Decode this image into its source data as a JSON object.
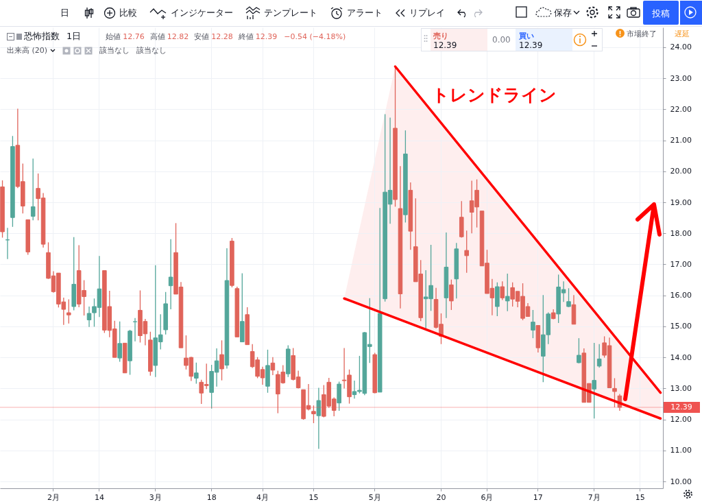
{
  "chart_data": {
    "type": "candlestick",
    "title": "恐怖指数",
    "subtitle": "1日",
    "categories": [
      null,
      null,
      null,
      null,
      null,
      null,
      null,
      null,
      null,
      null,
      "2月",
      null,
      null,
      null,
      null,
      null,
      null,
      null,
      null,
      "14",
      null,
      null,
      null,
      null,
      null,
      null,
      null,
      null,
      null,
      null,
      "3月",
      null,
      null,
      null,
      null,
      null,
      null,
      null,
      null,
      null,
      null,
      "18",
      null,
      null,
      null,
      null,
      null,
      null,
      null,
      null,
      null,
      "4月",
      null,
      null,
      null,
      null,
      null,
      null,
      null,
      null,
      null,
      "15",
      null,
      null,
      null,
      null,
      null,
      null,
      null,
      null,
      null,
      null,
      null,
      "5月",
      null,
      null,
      null,
      null,
      null,
      null,
      null,
      null,
      null,
      null,
      null,
      null,
      "20",
      null,
      null,
      null,
      null,
      null,
      null,
      null,
      null,
      "6月",
      null,
      null,
      null,
      null,
      null,
      null,
      null,
      null,
      null,
      "17",
      null,
      null,
      null,
      null,
      null,
      null,
      null,
      null,
      null,
      null,
      "7月",
      null,
      null,
      null,
      null,
      null,
      null,
      null,
      null,
      "15",
      null,
      null,
      null,
      null
    ],
    "ohlc": [
      [
        19.5,
        19.71,
        17.86,
        18.05
      ],
      [
        17.79,
        18.18,
        17.17,
        17.79
      ],
      [
        18.51,
        21.14,
        18.21,
        20.8
      ],
      [
        20.84,
        22.02,
        19.46,
        19.51
      ],
      [
        19.67,
        20.25,
        18.64,
        18.88
      ],
      [
        18.44,
        18.44,
        17.31,
        17.4
      ],
      [
        18.55,
        20.41,
        18.42,
        18.86
      ],
      [
        19.45,
        19.93,
        18.42,
        19.12
      ],
      [
        19.14,
        19.3,
        17.54,
        17.65
      ],
      [
        17.38,
        17.71,
        16.53,
        16.55
      ],
      [
        16.63,
        16.78,
        16.09,
        16.12
      ],
      [
        16.72,
        16.72,
        15.61,
        15.72
      ],
      [
        15.79,
        15.93,
        15.05,
        15.55
      ],
      [
        15.44,
        15.87,
        15.09,
        15.37
      ],
      [
        15.64,
        17.88,
        15.52,
        16.36
      ],
      [
        16.8,
        17.62,
        15.62,
        15.72
      ],
      [
        16.16,
        16.49,
        15.35,
        15.96
      ],
      [
        15.21,
        15.64,
        14.98,
        15.42
      ],
      [
        15.44,
        15.9,
        14.99,
        15.64
      ],
      [
        15.61,
        17.27,
        15.3,
        16.21
      ],
      [
        16.8,
        16.8,
        14.79,
        14.88
      ],
      [
        15.64,
        16.15,
        14.65,
        14.87
      ],
      [
        14.92,
        15.18,
        14.0,
        14.0
      ],
      [
        13.98,
        15.16,
        13.86,
        14.45
      ],
      [
        14.46,
        14.46,
        13.5,
        13.5
      ],
      [
        13.89,
        14.89,
        13.44,
        14.85
      ],
      [
        15.15,
        15.27,
        14.52,
        15.15
      ],
      [
        15.52,
        16.16,
        14.48,
        14.7
      ],
      [
        15.16,
        15.24,
        14.39,
        14.76
      ],
      [
        14.56,
        14.83,
        13.41,
        13.55
      ],
      [
        13.74,
        16.97,
        13.37,
        14.63
      ],
      [
        14.5,
        15.39,
        14.26,
        14.73
      ],
      [
        14.89,
        16.11,
        14.74,
        15.73
      ],
      [
        16.31,
        17.81,
        15.55,
        16.59
      ],
      [
        17.38,
        18.33,
        16.04,
        16.04
      ],
      [
        16.27,
        16.43,
        14.31,
        14.31
      ],
      [
        13.98,
        14.71,
        13.61,
        13.74
      ],
      [
        14.0,
        14.02,
        13.24,
        13.39
      ],
      [
        13.33,
        13.83,
        13.15,
        13.5
      ],
      [
        13.2,
        13.28,
        12.5,
        12.85
      ],
      [
        13.13,
        13.8,
        12.98,
        13.09
      ],
      [
        12.87,
        13.76,
        12.35,
        13.55
      ],
      [
        13.52,
        14.29,
        13.06,
        13.89
      ],
      [
        14.09,
        14.55,
        13.26,
        13.63
      ],
      [
        13.75,
        17.52,
        13.64,
        16.48
      ],
      [
        17.75,
        17.85,
        16.26,
        16.32
      ],
      [
        16.22,
        16.28,
        14.66,
        14.66
      ],
      [
        14.5,
        16.71,
        14.5,
        15.16
      ],
      [
        15.38,
        15.62,
        14.41,
        14.41
      ],
      [
        14.19,
        14.43,
        13.66,
        13.7
      ],
      [
        13.92,
        14.01,
        13.33,
        13.39
      ],
      [
        13.61,
        13.7,
        13.12,
        13.34
      ],
      [
        13.07,
        14.25,
        12.86,
        13.74
      ],
      [
        13.82,
        14.01,
        13.43,
        13.59
      ],
      [
        13.45,
        13.57,
        12.2,
        12.82
      ],
      [
        13.53,
        13.75,
        13.15,
        13.18
      ],
      [
        13.47,
        14.39,
        13.37,
        14.27
      ],
      [
        14.06,
        14.3,
        13.26,
        13.29
      ],
      [
        13.37,
        13.57,
        13.0,
        13.02
      ],
      [
        12.96,
        12.96,
        11.99,
        12.02
      ],
      [
        12.45,
        13.14,
        12.29,
        12.33
      ],
      [
        12.26,
        12.45,
        11.88,
        12.18
      ],
      [
        12.12,
        13.02,
        11.05,
        12.61
      ],
      [
        12.8,
        13.11,
        12.07,
        12.1
      ],
      [
        13.2,
        13.34,
        12.37,
        12.43
      ],
      [
        12.66,
        12.71,
        12.1,
        12.29
      ],
      [
        12.53,
        13.22,
        12.28,
        13.14
      ],
      [
        13.27,
        14.3,
        13.0,
        13.25
      ],
      [
        13.43,
        13.61,
        12.51,
        12.73
      ],
      [
        12.8,
        13.25,
        12.67,
        12.9
      ],
      [
        12.9,
        14.05,
        12.84,
        12.94
      ],
      [
        12.84,
        14.82,
        12.78,
        14.8
      ],
      [
        14.35,
        15.91,
        13.82,
        14.42
      ],
      [
        14.09,
        14.15,
        12.84,
        12.86
      ],
      [
        12.88,
        18.82,
        12.88,
        15.42
      ],
      [
        15.89,
        21.84,
        15.8,
        19.33
      ],
      [
        18.94,
        21.73,
        18.31,
        19.39
      ],
      [
        21.39,
        23.37,
        18.86,
        19.09
      ],
      [
        18.8,
        20.17,
        15.58,
        16.05
      ],
      [
        18.6,
        21.32,
        18.35,
        20.56
      ],
      [
        19.39,
        19.64,
        17.47,
        18.07
      ],
      [
        17.57,
        19.13,
        16.44,
        16.44
      ],
      [
        16.69,
        17.14,
        15.17,
        15.28
      ],
      [
        15.89,
        16.81,
        14.93,
        15.95
      ],
      [
        15.89,
        17.63,
        15.5,
        16.32
      ],
      [
        15.87,
        16.24,
        14.93,
        14.97
      ],
      [
        15.07,
        15.42,
        14.43,
        14.68
      ],
      [
        15.92,
        18.03,
        15.27,
        16.91
      ],
      [
        16.34,
        16.51,
        15.53,
        15.82
      ],
      [
        16.53,
        17.69,
        15.9,
        17.5
      ],
      [
        18.52,
        19.04,
        17.86,
        17.89
      ],
      [
        17.45,
        18.09,
        16.73,
        17.28
      ],
      [
        19.05,
        19.7,
        18.0,
        18.68
      ],
      [
        19.39,
        19.74,
        18.19,
        18.85
      ],
      [
        18.72,
        18.72,
        16.95,
        16.95
      ],
      [
        17.04,
        17.47,
        16.06,
        16.06
      ],
      [
        16.23,
        16.53,
        15.36,
        15.92
      ],
      [
        15.64,
        16.42,
        15.33,
        16.28
      ],
      [
        16.28,
        16.45,
        15.85,
        15.92
      ],
      [
        15.82,
        16.7,
        15.49,
        15.97
      ],
      [
        16.25,
        16.42,
        15.64,
        15.88
      ],
      [
        16.13,
        16.13,
        15.62,
        15.81
      ],
      [
        15.97,
        16.39,
        15.2,
        15.26
      ],
      [
        15.64,
        15.75,
        15.31,
        15.32
      ],
      [
        14.88,
        15.53,
        14.62,
        15.14
      ],
      [
        15.03,
        15.03,
        14.16,
        14.31
      ],
      [
        14.04,
        16.01,
        13.2,
        14.73
      ],
      [
        14.73,
        15.45,
        14.43,
        15.4
      ],
      [
        15.44,
        15.55,
        15.23,
        15.25
      ],
      [
        15.4,
        16.67,
        15.11,
        16.27
      ],
      [
        16.08,
        16.45,
        15.79,
        16.19
      ],
      [
        15.64,
        16.23,
        15.62,
        15.8
      ],
      [
        15.7,
        16.01,
        15.07,
        15.07
      ],
      [
        13.83,
        14.62,
        13.81,
        14.07
      ],
      [
        14.14,
        14.29,
        12.55,
        12.55
      ],
      [
        13.16,
        13.16,
        12.55,
        12.55
      ],
      [
        12.98,
        14.47,
        12.03,
        13.26
      ],
      [
        13.72,
        14.43,
        13.67,
        13.95
      ],
      [
        14.47,
        14.68,
        13.99,
        14.07
      ],
      [
        14.38,
        14.64,
        13.02,
        13.02
      ],
      [
        13.0,
        13.33,
        12.39,
        12.9
      ],
      [
        12.76,
        12.82,
        12.28,
        12.39
      ],
      null,
      null,
      null,
      null,
      null,
      null,
      null,
      null
    ],
    "colors": [
      "#e0645a",
      "#53a69a",
      "#53a69a",
      "#e0645a",
      "#e0645a",
      "#e0645a",
      "#53a69a",
      "#e0645a",
      "#e0645a",
      "#e0645a",
      "#e0645a",
      "#e0645a",
      "#e0645a",
      "#e0645a",
      "#53a69a",
      "#e0645a",
      "#e0645a",
      "#53a69a",
      "#53a69a",
      "#53a69a",
      "#e0645a",
      "#e0645a",
      "#e0645a",
      "#53a69a",
      "#e0645a",
      "#53a69a",
      "#53a69a",
      "#e0645a",
      "#e0645a",
      "#e0645a",
      "#53a69a",
      "#53a69a",
      "#53a69a",
      "#53a69a",
      "#e0645a",
      "#e0645a",
      "#e0645a",
      "#e0645a",
      "#53a69a",
      "#e0645a",
      "#e0645a",
      "#53a69a",
      "#53a69a",
      "#e0645a",
      "#53a69a",
      "#e0645a",
      "#e0645a",
      "#53a69a",
      "#e0645a",
      "#e0645a",
      "#e0645a",
      "#e0645a",
      "#53a69a",
      "#e0645a",
      "#e0645a",
      "#e0645a",
      "#53a69a",
      "#e0645a",
      "#e0645a",
      "#e0645a",
      "#e0645a",
      "#e0645a",
      "#53a69a",
      "#e0645a",
      "#e0645a",
      "#e0645a",
      "#53a69a",
      "#e0645a",
      "#e0645a",
      "#53a69a",
      "#53a69a",
      "#53a69a",
      "#53a69a",
      "#e0645a",
      "#53a69a",
      "#53a69a",
      "#53a69a",
      "#e0645a",
      "#e0645a",
      "#53a69a",
      "#e0645a",
      "#e0645a",
      "#e0645a",
      "#53a69a",
      "#53a69a",
      "#e0645a",
      "#e0645a",
      "#53a69a",
      "#e0645a",
      "#53a69a",
      "#e0645a",
      "#e0645a",
      "#e0645a",
      "#e0645a",
      "#e0645a",
      "#e0645a",
      "#e0645a",
      "#53a69a",
      "#e0645a",
      "#53a69a",
      "#e0645a",
      "#e0645a",
      "#e0645a",
      "#e0645a",
      "#53a69a",
      "#e0645a",
      "#53a69a",
      "#53a69a",
      "#e0645a",
      "#53a69a",
      "#53a69a",
      "#53a69a",
      "#e0645a",
      "#53a69a",
      "#e0645a",
      "#e0645a",
      "#53a69a",
      "#53a69a",
      "#e0645a",
      "#e0645a",
      "#e0645a",
      "#e0645a",
      null,
      null,
      null,
      null,
      null,
      null,
      null,
      null
    ],
    "series": [
      {
        "type": "line",
        "color": "#ff0000",
        "values": [
          null,
          null,
          null,
          null,
          null,
          null,
          null,
          null,
          null,
          null,
          null,
          null,
          null,
          null,
          null,
          null,
          null,
          null,
          null,
          null,
          null,
          null,
          null,
          null,
          null,
          null,
          null,
          null,
          null,
          null,
          null,
          null,
          null,
          null,
          null,
          null,
          null,
          null,
          null,
          null,
          null,
          null,
          null,
          null,
          null,
          null,
          null,
          null,
          null,
          null,
          null,
          null,
          null,
          null,
          null,
          null,
          null,
          null,
          null,
          null,
          null,
          null,
          null,
          null,
          null,
          null,
          null,
          null,
          null,
          null,
          null,
          null,
          null,
          null,
          null,
          null,
          null,
          23.38,
          null,
          null,
          null,
          null,
          null,
          null,
          null,
          null,
          null,
          null,
          null,
          null,
          null,
          null,
          null,
          null,
          null,
          null,
          null,
          null,
          null,
          null,
          null,
          null,
          null,
          null,
          null,
          null,
          null,
          null,
          null,
          null,
          null,
          null,
          null,
          null,
          null,
          null,
          null,
          null,
          null,
          null,
          null,
          null,
          null,
          null,
          null,
          null,
          null,
          null,
          null,
          12.86
        ]
      },
      {
        "type": "line",
        "color": "#ff0000",
        "values": [
          null,
          null,
          null,
          null,
          null,
          null,
          null,
          null,
          null,
          null,
          null,
          null,
          null,
          null,
          null,
          null,
          null,
          null,
          null,
          null,
          null,
          null,
          null,
          null,
          null,
          null,
          null,
          null,
          null,
          null,
          null,
          null,
          null,
          null,
          null,
          null,
          null,
          null,
          null,
          null,
          null,
          null,
          null,
          null,
          null,
          null,
          null,
          null,
          null,
          null,
          null,
          null,
          null,
          null,
          null,
          null,
          null,
          null,
          null,
          null,
          null,
          null,
          null,
          null,
          null,
          null,
          null,
          15.9,
          null,
          null,
          null,
          null,
          null,
          null,
          null,
          null,
          null,
          null,
          null,
          null,
          null,
          null,
          null,
          null,
          null,
          null,
          null,
          null,
          null,
          null,
          null,
          null,
          null,
          null,
          null,
          null,
          null,
          null,
          null,
          null,
          null,
          null,
          null,
          null,
          null,
          null,
          null,
          null,
          null,
          null,
          null,
          null,
          null,
          null,
          null,
          null,
          null,
          null,
          null,
          null,
          null,
          null,
          null,
          null,
          null,
          null,
          null,
          null,
          null,
          12.03
        ]
      }
    ],
    "ylim": [
      9.78,
      24.64
    ],
    "yticks": [
      {
        "value": 10,
        "label": "10.00"
      },
      {
        "value": 11,
        "label": "11.00"
      },
      {
        "value": 12,
        "label": "12.00"
      },
      {
        "value": 13,
        "label": "13.00"
      },
      {
        "value": 14,
        "label": "14.00"
      },
      {
        "value": 15,
        "label": "15.00"
      },
      {
        "value": 16,
        "label": "16.00"
      },
      {
        "value": 17,
        "label": "17.00"
      },
      {
        "value": 18,
        "label": "18.00"
      },
      {
        "value": 19,
        "label": "19.00"
      },
      {
        "value": 20,
        "label": "20.00"
      },
      {
        "value": 21,
        "label": "21.00"
      },
      {
        "value": 22,
        "label": "22.00"
      },
      {
        "value": 23,
        "label": "23.00"
      },
      {
        "value": 24,
        "label": "24.00"
      }
    ],
    "ref_lines": [
      {
        "axis": "y",
        "value": 12.39,
        "label": "12.39",
        "color": "#ef5350"
      }
    ],
    "grid": true,
    "annotations": [
      "トレンドライン",
      "日",
      "比較",
      "インジケーター",
      "テンプレート",
      "アラート",
      "リプレイ",
      "保存",
      "投稿",
      "始値",
      "12.76",
      "高値",
      "12.82",
      "安値",
      "12.28",
      "終値",
      "12.39",
      "−0.54 (−4.18%)",
      "出来高 (20)",
      "該当なし",
      "該当なし",
      "売り",
      "12.39",
      "0.00",
      "買い",
      "12.39",
      "市場終了",
      "遅延"
    ]
  }
}
